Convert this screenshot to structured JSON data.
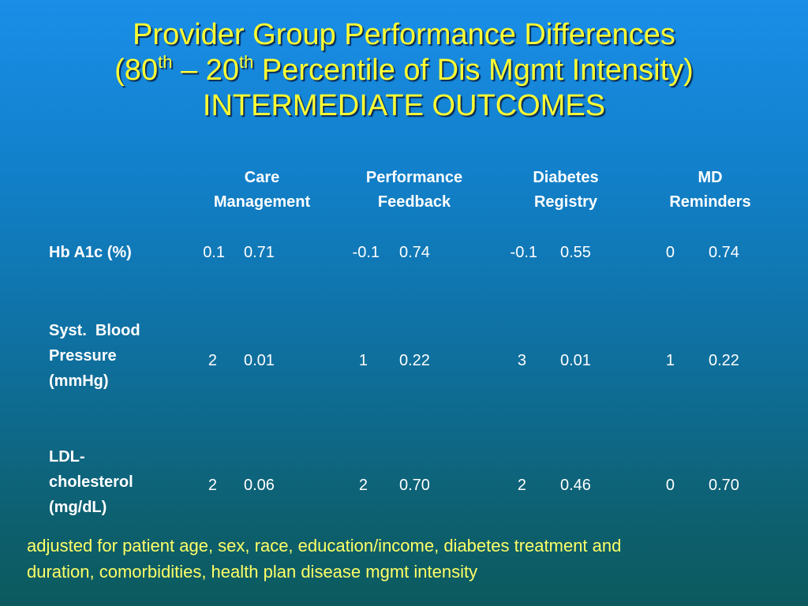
{
  "title": {
    "line1": "Provider Group Performance Differences",
    "line2_open": "(80",
    "line2_sup1": "th",
    "line2_mid": " – 20",
    "line2_sup2": "th",
    "line2_rest": " Percentile of Dis Mgmt Intensity)",
    "line3": "INTERMEDIATE OUTCOMES"
  },
  "table": {
    "columns": [
      {
        "line1": "Care",
        "line2": "Management"
      },
      {
        "line1": "Performance",
        "line2": "Feedback"
      },
      {
        "line1": "Diabetes",
        "line2": "Registry"
      },
      {
        "line1": "MD",
        "line2": "Reminders"
      }
    ],
    "rows": [
      {
        "label": [
          "Hb A1c (%)"
        ],
        "cells": [
          {
            "est": "0.1",
            "p": "0.71"
          },
          {
            "est": "-0.1",
            "p": "0.74"
          },
          {
            "est": "-0.1",
            "p": "0.55"
          },
          {
            "est": "0",
            "p": "0.74"
          }
        ]
      },
      {
        "label": [
          "Syst.  Blood",
          "Pressure",
          "(mmHg)"
        ],
        "cells": [
          {
            "est": "2",
            "p": "0.01"
          },
          {
            "est": "1",
            "p": "0.22"
          },
          {
            "est": "3",
            "p": "0.01"
          },
          {
            "est": "1",
            "p": "0.22"
          }
        ]
      },
      {
        "label": [
          "LDL-",
          "cholesterol",
          "(mg/dL)"
        ],
        "cells": [
          {
            "est": "2",
            "p": "0.06"
          },
          {
            "est": "2",
            "p": "0.70"
          },
          {
            "est": "2",
            "p": "0.46"
          },
          {
            "est": "0",
            "p": "0.70"
          }
        ]
      }
    ]
  },
  "footnote": {
    "line1": "adjusted for patient age, sex, race, education/income, diabetes treatment and",
    "line2": "duration, comorbidities, health plan disease mgmt intensity"
  },
  "colors": {
    "title": "#ffff33",
    "footnote": "#ffff66",
    "text": "#ffffff",
    "background_top": "#1a8ee8",
    "background_bottom": "#0c5a5e"
  }
}
